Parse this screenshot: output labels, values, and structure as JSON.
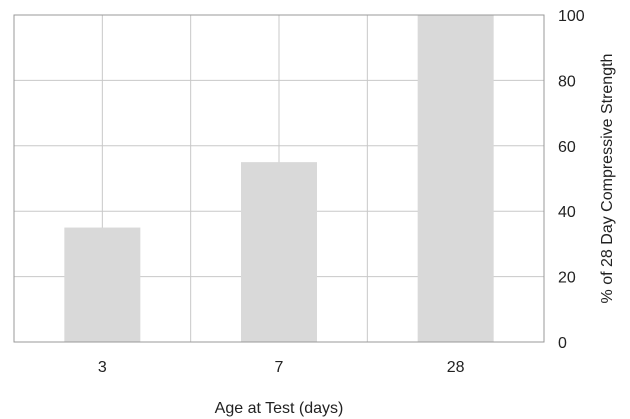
{
  "chart_data": {
    "type": "bar",
    "categories": [
      "3",
      "7",
      "28"
    ],
    "values": [
      35,
      55,
      100
    ],
    "xlabel": "Age at Test (days)",
    "ylabel": "% of 28 Day Compressive Strength",
    "ylim": [
      0,
      100
    ],
    "yticks": [
      "0",
      "20",
      "40",
      "60",
      "80",
      "100"
    ],
    "grid": true,
    "y_axis_side": "right",
    "colors": {
      "bar": "#d9d9d9",
      "grid": "#c8c8c8",
      "frame": "#999999"
    }
  }
}
